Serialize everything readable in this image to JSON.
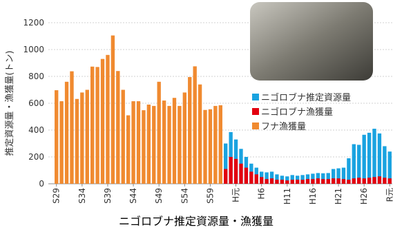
{
  "chart_data": {
    "type": "bar",
    "title": "ニゴロブナ推定資源量・漁獲量",
    "y_label": "推定資源量・漁獲量(トン)",
    "categories": [
      "S29",
      null,
      null,
      null,
      null,
      "S34",
      null,
      null,
      null,
      null,
      "S39",
      null,
      null,
      null,
      null,
      "S44",
      null,
      null,
      null,
      null,
      "S49",
      null,
      null,
      null,
      null,
      "S54",
      null,
      null,
      null,
      null,
      "S59",
      null,
      null,
      null,
      null,
      "H元",
      null,
      null,
      null,
      null,
      "H6",
      null,
      null,
      null,
      null,
      "H11",
      null,
      null,
      null,
      null,
      "H16",
      null,
      null,
      null,
      null,
      "H21",
      null,
      null,
      null,
      null,
      "H26",
      null,
      null,
      null,
      null,
      "R元"
    ],
    "series": [
      {
        "name": "ニゴロブナ推定資源量",
        "color": "#1aa3e0",
        "values": [
          null,
          null,
          null,
          null,
          null,
          null,
          null,
          null,
          null,
          null,
          null,
          null,
          null,
          null,
          null,
          null,
          null,
          null,
          null,
          null,
          null,
          null,
          null,
          null,
          null,
          null,
          null,
          null,
          null,
          null,
          null,
          null,
          null,
          300,
          385,
          330,
          260,
          200,
          150,
          120,
          90,
          85,
          90,
          70,
          60,
          55,
          65,
          60,
          65,
          70,
          75,
          80,
          78,
          80,
          110,
          115,
          120,
          190,
          295,
          290,
          365,
          380,
          410,
          375,
          280,
          240
        ]
      },
      {
        "name": "ニゴロブナ漁獲量",
        "color": "#e3000f",
        "values": [
          null,
          null,
          null,
          null,
          null,
          null,
          null,
          null,
          null,
          null,
          null,
          null,
          null,
          null,
          null,
          null,
          null,
          null,
          null,
          null,
          null,
          null,
          null,
          null,
          null,
          null,
          null,
          null,
          null,
          null,
          null,
          null,
          null,
          110,
          200,
          185,
          150,
          120,
          90,
          70,
          50,
          35,
          40,
          30,
          30,
          25,
          30,
          30,
          30,
          35,
          35,
          40,
          35,
          35,
          40,
          40,
          35,
          30,
          40,
          45,
          40,
          45,
          50,
          55,
          45,
          40
        ]
      },
      {
        "name": "フナ漁獲量",
        "color": "#f08a30",
        "values": [
          697,
          615,
          760,
          838,
          632,
          680,
          700,
          873,
          870,
          930,
          960,
          1105,
          840,
          700,
          510,
          615,
          615,
          548,
          590,
          580,
          760,
          620,
          580,
          640,
          580,
          680,
          795,
          875,
          740,
          550,
          555,
          580,
          585,
          null,
          null,
          null,
          null,
          null,
          null,
          null,
          null,
          null,
          null,
          null,
          null,
          null,
          null,
          null,
          null,
          null,
          null,
          null,
          null,
          null,
          null,
          null,
          null,
          null,
          null,
          null,
          null,
          null,
          null,
          null,
          null,
          null
        ]
      }
    ],
    "ylim": [
      0,
      1200
    ],
    "yticks": [
      0,
      200,
      400,
      600,
      800,
      1000,
      1200
    ],
    "grid": true
  }
}
